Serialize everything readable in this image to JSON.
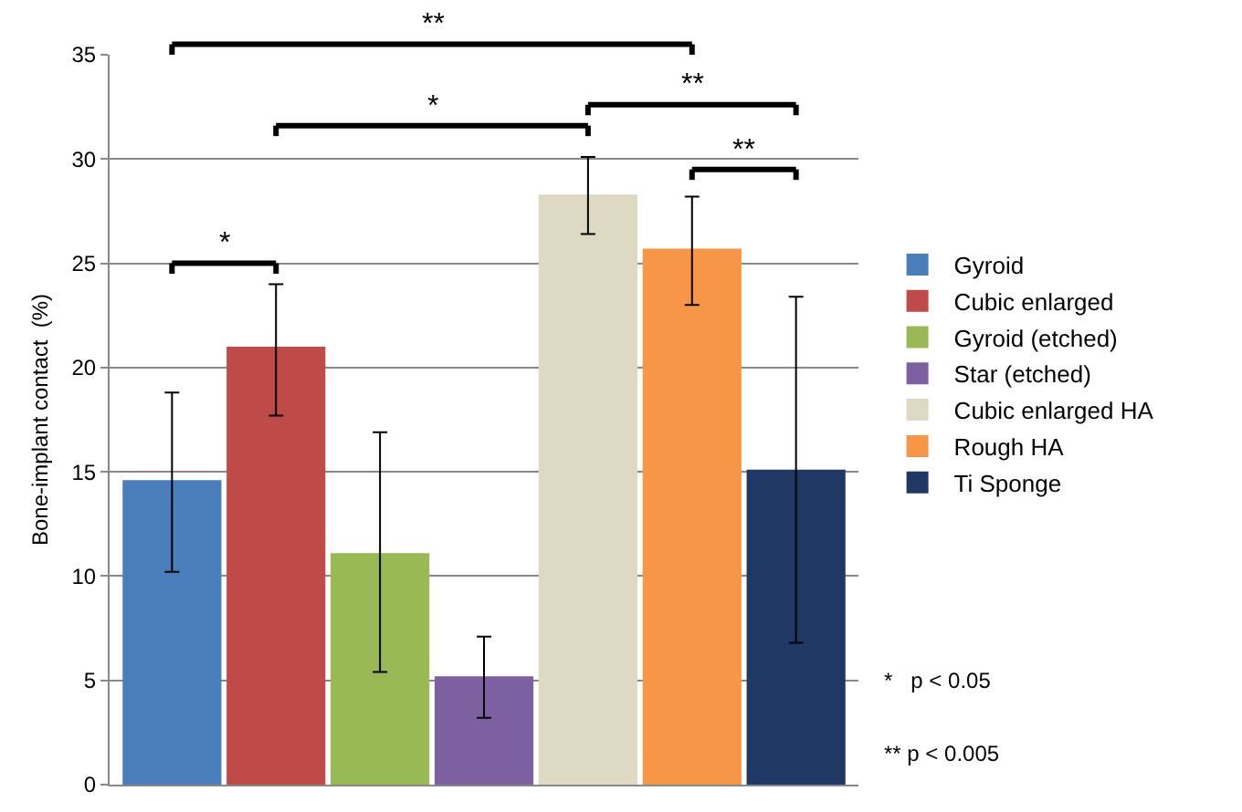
{
  "chart_data": {
    "type": "bar",
    "ylabel": "Bone-implant contact  (%)",
    "categories": [
      null,
      null,
      null,
      null,
      null,
      null,
      null
    ],
    "series": [
      {
        "name": "Gyroid",
        "color": "#4a7ebb",
        "values": [
          14.6,
          null,
          null,
          null,
          null,
          null,
          null
        ],
        "errors": [
          [
            10.2,
            18.8
          ],
          null,
          null,
          null,
          null,
          null,
          null
        ]
      },
      {
        "name": "Cubic enlarged",
        "color": "#be4b48",
        "values": [
          null,
          21.0,
          null,
          null,
          null,
          null,
          null
        ],
        "errors": [
          null,
          [
            17.7,
            24.0
          ],
          null,
          null,
          null,
          null,
          null
        ]
      },
      {
        "name": "Gyroid (etched)",
        "color": "#98b954",
        "values": [
          null,
          null,
          11.1,
          null,
          null,
          null,
          null
        ],
        "errors": [
          null,
          null,
          [
            5.4,
            16.9
          ],
          null,
          null,
          null,
          null
        ]
      },
      {
        "name": "Star (etched)",
        "color": "#7d60a0",
        "values": [
          null,
          null,
          null,
          5.2,
          null,
          null,
          null
        ],
        "errors": [
          null,
          null,
          null,
          [
            3.2,
            7.1
          ],
          null,
          null,
          null
        ]
      },
      {
        "name": "Cubic enlarged HA",
        "color": "#ddd9c3",
        "values": [
          null,
          null,
          null,
          null,
          28.3,
          null,
          null
        ],
        "errors": [
          null,
          null,
          null,
          null,
          [
            26.4,
            30.1
          ],
          null,
          null
        ]
      },
      {
        "name": "Rough HA",
        "color": "#f79646",
        "values": [
          null,
          null,
          null,
          null,
          null,
          25.7,
          null
        ],
        "errors": [
          null,
          null,
          null,
          null,
          null,
          [
            23.0,
            28.2
          ],
          null
        ]
      },
      {
        "name": "Ti Sponge",
        "color": "#1f3864",
        "values": [
          null,
          null,
          null,
          null,
          null,
          null,
          15.1
        ],
        "errors": [
          null,
          null,
          null,
          null,
          null,
          null,
          [
            6.8,
            23.4
          ]
        ]
      }
    ],
    "ylim": [
      0,
      35
    ],
    "yticks": [
      0,
      5,
      10,
      15,
      20,
      25,
      30,
      35
    ],
    "grid": "y",
    "legend": "right",
    "annotations": [
      "**",
      "*",
      "**",
      "*",
      "**",
      "*   p < 0.05",
      "** p < 0.005"
    ]
  }
}
